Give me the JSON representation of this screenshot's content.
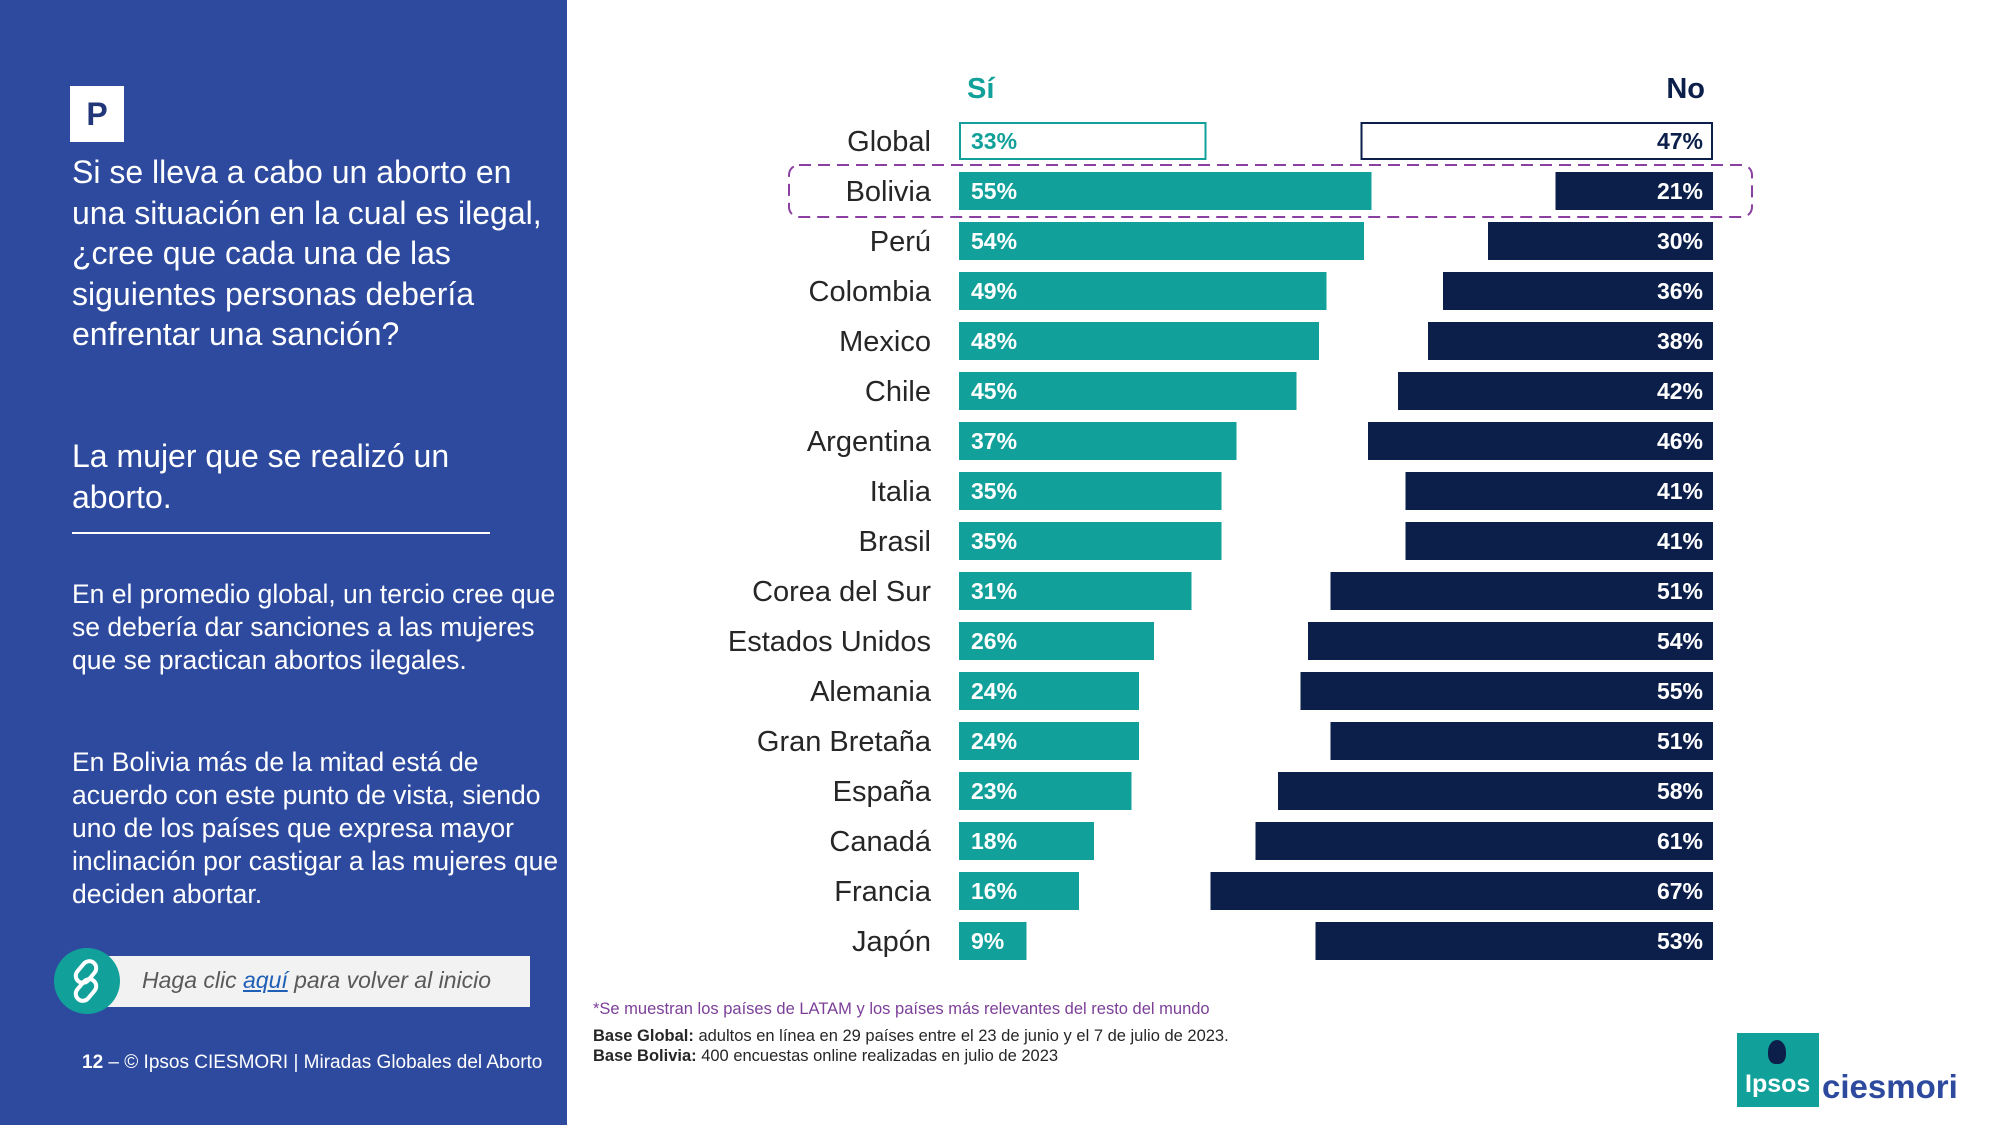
{
  "left_panel": {
    "badge": "P",
    "question": "Si se lleva a cabo un aborto en una situación en la cual es ilegal, ¿cree que cada una de las siguientes personas debería enfrentar una sanción?",
    "subquestion": "La mujer que se realizó un aborto.",
    "paragraph1": "En el promedio global, un tercio cree que se debería dar sanciones a las mujeres que se practican abortos ilegales.",
    "paragraph2": "En Bolivia más de la mitad está de acuerdo con este punto de vista, siendo uno de los países que expresa mayor inclinación por castigar a las mujeres que deciden abortar.",
    "link": {
      "prefix": "Haga clic ",
      "link_text": "aquí",
      "suffix": " para volver al inicio",
      "icon": "link-icon"
    },
    "footer": {
      "page_number": "12",
      "dash": " – ",
      "text": "© Ipsos CIESMORI | Miradas Globales del Aborto"
    }
  },
  "chart_data": {
    "type": "bar",
    "orientation": "horizontal-diverging",
    "categories": [
      "Global",
      "Bolivia",
      "Perú",
      "Colombia",
      "Mexico",
      "Chile",
      "Argentina",
      "Italia",
      "Brasil",
      "Corea del Sur",
      "Estados Unidos",
      "Alemania",
      "Gran Bretaña",
      "España",
      "Canadá",
      "Francia",
      "Japón"
    ],
    "series": [
      {
        "name": "Sí",
        "color": "#12a19a",
        "values": [
          33,
          55,
          54,
          49,
          48,
          45,
          37,
          35,
          35,
          31,
          26,
          24,
          24,
          23,
          18,
          16,
          9
        ],
        "labels": [
          "33%",
          "55%",
          "54%",
          "49%",
          "48%",
          "45%",
          "37%",
          "35%",
          "35%",
          "31%",
          "26%",
          "24%",
          "24%",
          "23%",
          "18%",
          "16%",
          "9%"
        ]
      },
      {
        "name": "No",
        "color": "#0b1f4a",
        "values": [
          47,
          21,
          30,
          36,
          38,
          42,
          46,
          41,
          41,
          51,
          54,
          55,
          51,
          58,
          61,
          67,
          53
        ],
        "labels": [
          "47%",
          "21%",
          "30%",
          "36%",
          "38%",
          "42%",
          "46%",
          "41%",
          "41%",
          "51%",
          "54%",
          "55%",
          "51%",
          "58%",
          "61%",
          "67%",
          "53%"
        ]
      }
    ],
    "highlight_category": "Bolivia",
    "outline_category": "Global",
    "xlim": [
      0,
      100
    ],
    "grid": false
  },
  "notes": {
    "footnote": "*Se muestran los países de LATAM y los países más relevantes del resto del mundo",
    "base_global_label": "Base Global:",
    "base_global_text": " adultos en línea en 29 países entre el 23 de junio y el 7 de julio de 2023.",
    "base_bolivia_label": "Base Bolivia:",
    "base_bolivia_text": " 400 encuestas online realizadas en julio de 2023"
  },
  "logo": {
    "ipsos": "Ipsos",
    "ciesmori": "ciesmori"
  }
}
